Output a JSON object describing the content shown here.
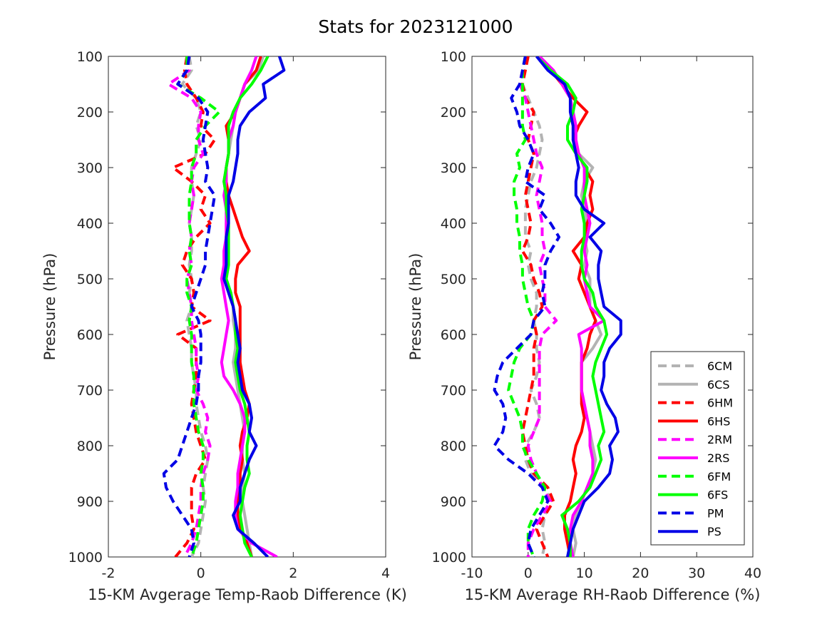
{
  "figure": {
    "title": "Stats for 2023121000"
  },
  "colors": {
    "6C": "#b3b3b3",
    "6H": "#ff0000",
    "2R": "#ff00ff",
    "6F": "#00ff00",
    "P": "#0000e6"
  },
  "chart_data": [
    {
      "type": "line",
      "xlabel": "15-KM Avgerage Temp-Raob Difference (K)",
      "ylabel": "Pressure (hPa)",
      "xlim": [
        -2,
        4
      ],
      "ylim": [
        1000,
        100
      ],
      "xticks": [
        "-2",
        "0",
        "2",
        "4"
      ],
      "yticks": [
        "100",
        "200",
        "300",
        "400",
        "500",
        "600",
        "700",
        "800",
        "900",
        "1000"
      ],
      "pressure": [
        100,
        125,
        150,
        175,
        200,
        225,
        250,
        275,
        300,
        325,
        350,
        375,
        400,
        425,
        450,
        475,
        500,
        525,
        550,
        575,
        600,
        625,
        650,
        675,
        700,
        725,
        750,
        775,
        800,
        825,
        850,
        875,
        900,
        925,
        950,
        975,
        1000
      ],
      "series": [
        {
          "name": "6CM",
          "key": "6C",
          "dash": true,
          "x": [
            -0.25,
            -0.2,
            -0.4,
            -0.1,
            0.0,
            -0.1,
            0.0,
            -0.1,
            -0.2,
            -0.2,
            -0.15,
            -0.2,
            -0.25,
            -0.2,
            -0.2,
            -0.25,
            -0.2,
            -0.25,
            -0.2,
            -0.3,
            -0.25,
            -0.2,
            -0.2,
            -0.15,
            -0.1,
            -0.1,
            -0.05,
            0.0,
            0.1,
            0.15,
            0.1,
            0.05,
            0.1,
            0.05,
            0.0,
            -0.05,
            -0.2
          ]
        },
        {
          "name": "6CS",
          "key": "6C",
          "dash": false,
          "x": [
            1.35,
            1.25,
            0.95,
            0.85,
            0.75,
            0.7,
            0.65,
            0.6,
            0.55,
            0.5,
            0.55,
            0.6,
            0.55,
            0.55,
            0.55,
            0.6,
            0.55,
            0.65,
            0.7,
            0.7,
            0.75,
            0.75,
            0.7,
            0.75,
            0.8,
            0.85,
            0.9,
            0.95,
            0.9,
            0.9,
            0.95,
            0.9,
            0.9,
            0.95,
            1.0,
            1.05,
            1.1
          ]
        },
        {
          "name": "6HM",
          "key": "6H",
          "dash": true,
          "x": [
            -0.3,
            -0.35,
            -0.3,
            -0.1,
            0.05,
            0.0,
            0.3,
            0.1,
            -0.6,
            -0.2,
            0.1,
            0.0,
            0.2,
            -0.1,
            -0.3,
            -0.4,
            -0.2,
            -0.15,
            -0.2,
            0.2,
            -0.5,
            -0.1,
            -0.1,
            -0.1,
            -0.15,
            -0.2,
            -0.15,
            -0.1,
            0.0,
            0.1,
            -0.1,
            -0.2,
            -0.2,
            -0.2,
            -0.15,
            -0.3,
            -0.55
          ]
        },
        {
          "name": "6HS",
          "key": "6H",
          "dash": false,
          "x": [
            1.3,
            1.2,
            0.95,
            0.85,
            0.75,
            0.55,
            0.6,
            0.6,
            0.55,
            0.55,
            0.6,
            0.7,
            0.8,
            0.9,
            1.05,
            0.8,
            0.75,
            0.75,
            0.85,
            0.85,
            0.85,
            0.85,
            0.85,
            0.9,
            0.95,
            1.05,
            1.0,
            0.9,
            0.85,
            0.9,
            0.85,
            0.85,
            0.8,
            0.8,
            0.85,
            1.0,
            1.1
          ]
        },
        {
          "name": "2RM",
          "key": "2R",
          "dash": true,
          "x": [
            -0.3,
            -0.25,
            -0.7,
            -0.2,
            0.0,
            -0.05,
            -0.05,
            0.05,
            -0.15,
            -0.2,
            -0.15,
            -0.2,
            -0.25,
            -0.2,
            -0.25,
            -0.2,
            -0.3,
            -0.25,
            -0.2,
            -0.2,
            -0.15,
            -0.1,
            -0.1,
            -0.05,
            -0.1,
            0.05,
            0.15,
            0.1,
            0.2,
            0.15,
            0.05,
            0.0,
            0.0,
            -0.05,
            -0.1,
            -0.2,
            -0.35
          ]
        },
        {
          "name": "2RS",
          "key": "2R",
          "dash": false,
          "x": [
            1.2,
            1.1,
            0.95,
            0.85,
            0.75,
            0.7,
            0.6,
            0.6,
            0.55,
            0.55,
            0.5,
            0.55,
            0.55,
            0.55,
            0.5,
            0.5,
            0.45,
            0.5,
            0.55,
            0.6,
            0.55,
            0.5,
            0.45,
            0.5,
            0.7,
            0.85,
            0.95,
            0.95,
            0.9,
            0.85,
            0.8,
            0.8,
            0.75,
            0.75,
            0.8,
            1.1,
            1.65
          ]
        },
        {
          "name": "6FM",
          "key": "6F",
          "dash": true,
          "x": [
            -0.3,
            -0.3,
            -0.5,
            0.0,
            0.4,
            0.1,
            -0.1,
            -0.1,
            -0.2,
            -0.2,
            -0.25,
            -0.25,
            -0.25,
            -0.2,
            -0.25,
            -0.2,
            -0.3,
            -0.3,
            -0.2,
            -0.25,
            -0.2,
            -0.2,
            -0.2,
            -0.15,
            -0.15,
            -0.15,
            -0.1,
            -0.05,
            0.05,
            0.05,
            0.0,
            0.05,
            0.05,
            0.0,
            -0.05,
            -0.1,
            -0.2
          ]
        },
        {
          "name": "6FS",
          "key": "6F",
          "dash": false,
          "x": [
            1.45,
            1.3,
            1.1,
            0.85,
            0.7,
            0.6,
            0.6,
            0.6,
            0.55,
            0.5,
            0.55,
            0.55,
            0.6,
            0.6,
            0.6,
            0.6,
            0.55,
            0.65,
            0.7,
            0.75,
            0.75,
            0.8,
            0.75,
            0.8,
            0.85,
            0.95,
            1.0,
            1.05,
            1.0,
            1.0,
            1.05,
            0.95,
            0.9,
            0.85,
            0.9,
            0.95,
            1.1
          ]
        },
        {
          "name": "PM",
          "key": "P",
          "dash": true,
          "x": [
            -0.25,
            -0.3,
            -0.5,
            -0.05,
            0.15,
            0.1,
            0.05,
            0.1,
            0.15,
            0.1,
            0.3,
            0.25,
            0.2,
            0.15,
            0.1,
            0.1,
            0.0,
            -0.1,
            -0.2,
            -0.05,
            0.0,
            0.0,
            0.0,
            -0.05,
            -0.05,
            -0.1,
            -0.2,
            -0.3,
            -0.4,
            -0.5,
            -0.8,
            -0.75,
            -0.6,
            -0.4,
            -0.2,
            -0.15,
            -0.25
          ]
        },
        {
          "name": "PS",
          "key": "P",
          "dash": false,
          "x": [
            1.7,
            1.8,
            1.35,
            1.4,
            1.05,
            0.85,
            0.8,
            0.8,
            0.75,
            0.7,
            0.6,
            0.6,
            0.6,
            0.55,
            0.55,
            0.55,
            0.5,
            0.6,
            0.7,
            0.75,
            0.8,
            0.85,
            0.8,
            0.85,
            0.9,
            1.05,
            1.1,
            1.05,
            1.2,
            1.05,
            0.95,
            0.85,
            0.85,
            0.7,
            0.8,
            1.15,
            1.45
          ]
        }
      ]
    },
    {
      "type": "line",
      "xlabel": "15-KM Average RH-Raob Difference (%)",
      "ylabel": "Pressure (hPa)",
      "xlim": [
        -10,
        40
      ],
      "ylim": [
        1000,
        100
      ],
      "xticks": [
        "-10",
        "0",
        "10",
        "20",
        "30",
        "40"
      ],
      "yticks": [
        "100",
        "200",
        "300",
        "400",
        "500",
        "600",
        "700",
        "800",
        "900",
        "1000"
      ],
      "pressure": [
        100,
        125,
        150,
        175,
        200,
        225,
        250,
        275,
        300,
        325,
        350,
        375,
        400,
        425,
        450,
        475,
        500,
        525,
        550,
        575,
        600,
        625,
        650,
        675,
        700,
        725,
        750,
        775,
        800,
        825,
        850,
        875,
        900,
        925,
        950,
        975,
        1000
      ],
      "series": [
        {
          "name": "6CM",
          "key": "6C",
          "dash": true,
          "x": [
            0.0,
            -0.5,
            -1.0,
            0.0,
            1.0,
            2.0,
            2.5,
            2.0,
            1.5,
            0.5,
            0.0,
            -0.5,
            -0.5,
            -0.5,
            0.5,
            0.0,
            0.5,
            1.5,
            1.5,
            1.0,
            1.5,
            1.5,
            2.0,
            1.5,
            0.5,
            1.5,
            2.0,
            1.0,
            -0.5,
            -0.5,
            0.5,
            3.0,
            4.0,
            3.0,
            2.5,
            3.0,
            2.5
          ]
        },
        {
          "name": "6CS",
          "key": "6C",
          "dash": false,
          "x": [
            2.0,
            4.0,
            6.0,
            7.5,
            8.0,
            8.5,
            8.5,
            9.0,
            11.5,
            10.0,
            9.5,
            10.0,
            10.5,
            10.0,
            10.5,
            10.0,
            11.0,
            11.0,
            11.0,
            12.0,
            13.0,
            11.5,
            9.5,
            9.5,
            9.5,
            10.0,
            10.5,
            11.0,
            11.5,
            12.0,
            11.5,
            10.5,
            9.5,
            8.5,
            8.0,
            8.5,
            8.0
          ]
        },
        {
          "name": "6HM",
          "key": "6H",
          "dash": true,
          "x": [
            0.0,
            -0.5,
            -1.0,
            -0.5,
            1.0,
            0.5,
            0.0,
            1.0,
            0.5,
            0.0,
            -0.5,
            0.0,
            0.5,
            0.0,
            -1.0,
            0.5,
            1.0,
            2.0,
            2.5,
            1.0,
            1.5,
            1.0,
            1.0,
            1.0,
            0.5,
            0.0,
            -0.5,
            -1.0,
            -0.5,
            0.0,
            1.0,
            3.5,
            4.5,
            3.0,
            1.5,
            2.5,
            3.5
          ]
        },
        {
          "name": "6HS",
          "key": "6H",
          "dash": false,
          "x": [
            2.0,
            4.0,
            6.0,
            8.0,
            10.5,
            9.0,
            8.0,
            9.0,
            10.0,
            11.5,
            11.0,
            11.5,
            10.5,
            10.0,
            8.0,
            9.5,
            9.0,
            10.0,
            11.0,
            12.0,
            11.0,
            10.5,
            9.5,
            9.5,
            9.5,
            9.5,
            10.0,
            9.5,
            8.5,
            8.0,
            8.5,
            8.0,
            7.5,
            6.5,
            6.5,
            7.0,
            7.5
          ]
        },
        {
          "name": "2RM",
          "key": "2R",
          "dash": true,
          "x": [
            -0.5,
            -1.0,
            -1.5,
            -0.5,
            0.0,
            0.5,
            1.0,
            1.5,
            2.5,
            2.0,
            1.5,
            2.0,
            2.5,
            2.5,
            3.0,
            2.0,
            2.5,
            3.0,
            3.0,
            5.0,
            2.5,
            2.0,
            2.0,
            2.0,
            2.0,
            2.0,
            2.0,
            1.0,
            0.0,
            0.5,
            1.5,
            2.5,
            4.0,
            2.5,
            1.0,
            0.0,
            0.0
          ]
        },
        {
          "name": "2RS",
          "key": "2R",
          "dash": false,
          "x": [
            2.0,
            4.5,
            6.0,
            7.5,
            8.0,
            8.5,
            8.5,
            9.0,
            10.0,
            10.0,
            10.0,
            10.5,
            11.0,
            10.5,
            10.0,
            10.5,
            10.0,
            10.5,
            11.0,
            13.5,
            9.0,
            9.5,
            9.5,
            9.5,
            9.5,
            10.0,
            10.5,
            11.0,
            11.0,
            11.5,
            11.5,
            10.5,
            9.5,
            8.0,
            7.5,
            7.5,
            8.0
          ]
        },
        {
          "name": "6FM",
          "key": "6F",
          "dash": true,
          "x": [
            -0.5,
            -1.0,
            -1.0,
            -1.0,
            -1.0,
            -1.0,
            -0.5,
            -2.0,
            -1.5,
            -2.5,
            -2.5,
            -2.0,
            -2.0,
            -1.5,
            -1.5,
            -1.0,
            -1.0,
            -0.5,
            0.0,
            1.0,
            0.5,
            -1.5,
            -2.5,
            -3.0,
            -3.5,
            -2.5,
            -1.5,
            -1.0,
            -1.0,
            0.0,
            1.5,
            3.0,
            2.5,
            1.0,
            0.0,
            0.0,
            1.0
          ]
        },
        {
          "name": "6FS",
          "key": "6F",
          "dash": false,
          "x": [
            1.5,
            4.0,
            7.0,
            8.5,
            8.0,
            7.0,
            7.0,
            8.5,
            10.5,
            10.5,
            10.0,
            9.5,
            10.0,
            10.0,
            9.5,
            9.5,
            10.0,
            11.5,
            12.0,
            13.5,
            14.0,
            13.0,
            12.0,
            11.5,
            12.0,
            12.5,
            13.0,
            13.5,
            12.5,
            13.0,
            12.0,
            11.0,
            9.0,
            6.0,
            7.0,
            7.5,
            7.5
          ]
        },
        {
          "name": "PM",
          "key": "P",
          "dash": true,
          "x": [
            -0.5,
            -1.0,
            -1.5,
            -3.0,
            -2.0,
            -1.5,
            0.0,
            1.0,
            0.0,
            -0.5,
            3.0,
            2.0,
            4.0,
            5.5,
            4.0,
            3.0,
            3.0,
            2.5,
            3.0,
            1.0,
            0.5,
            -2.0,
            -4.5,
            -5.5,
            -6.0,
            -4.5,
            -4.0,
            -4.5,
            -6.0,
            -3.5,
            0.0,
            2.5,
            3.5,
            2.0,
            0.5,
            0.0,
            1.0
          ]
        },
        {
          "name": "PS",
          "key": "P",
          "dash": false,
          "x": [
            1.5,
            3.5,
            6.5,
            7.5,
            7.5,
            8.0,
            8.0,
            8.5,
            9.0,
            8.5,
            8.5,
            10.0,
            13.5,
            11.0,
            13.0,
            12.5,
            12.5,
            13.0,
            13.5,
            16.5,
            16.5,
            14.5,
            13.5,
            13.5,
            13.0,
            14.0,
            15.5,
            16.0,
            14.5,
            15.0,
            14.5,
            12.5,
            10.0,
            9.0,
            8.0,
            7.5,
            7.0
          ]
        }
      ]
    }
  ],
  "legend": {
    "placement": "lower-right of right panel",
    "entries": [
      {
        "label": "6CM",
        "key": "6C",
        "dash": true
      },
      {
        "label": "6CS",
        "key": "6C",
        "dash": false
      },
      {
        "label": "6HM",
        "key": "6H",
        "dash": true
      },
      {
        "label": "6HS",
        "key": "6H",
        "dash": false
      },
      {
        "label": "2RM",
        "key": "2R",
        "dash": true
      },
      {
        "label": "2RS",
        "key": "2R",
        "dash": false
      },
      {
        "label": "6FM",
        "key": "6F",
        "dash": true
      },
      {
        "label": "6FS",
        "key": "6F",
        "dash": false
      },
      {
        "label": "PM",
        "key": "P",
        "dash": true
      },
      {
        "label": "PS",
        "key": "P",
        "dash": false
      }
    ]
  }
}
